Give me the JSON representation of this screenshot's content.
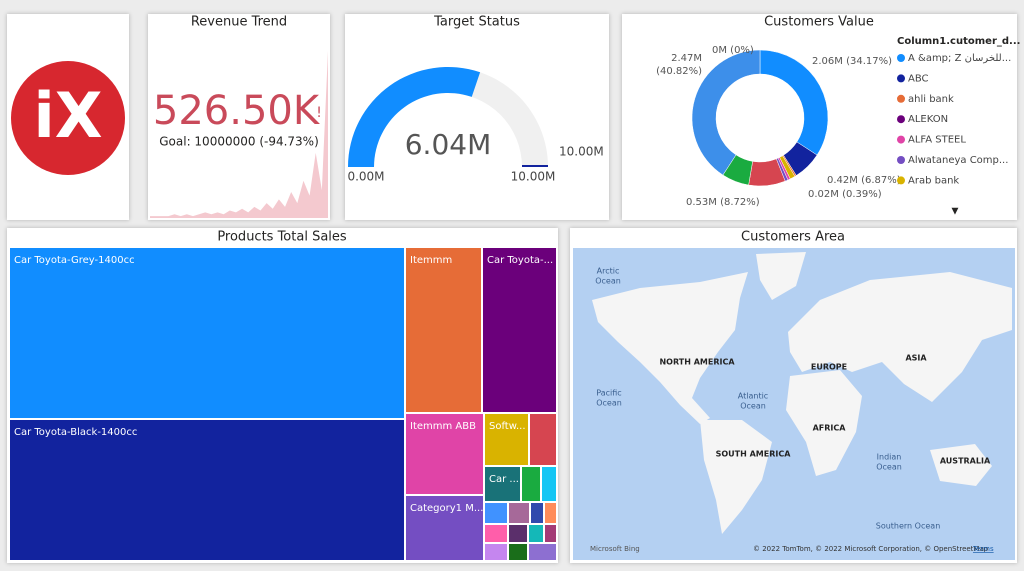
{
  "logo": {
    "text": "iX"
  },
  "revenue_trend": {
    "title": "Revenue Trend",
    "value": "526.50K",
    "alert": "!",
    "goal": "Goal: 10000000 (-94.73%)",
    "trend": [
      1,
      1,
      1,
      1,
      2,
      1,
      2,
      1,
      2,
      3,
      2,
      3,
      2,
      4,
      3,
      5,
      3,
      6,
      4,
      8,
      5,
      10,
      6,
      14,
      8,
      20,
      12,
      35,
      15,
      90
    ],
    "trend_ylim": [
      0,
      100
    ],
    "trend_color": "#f4c9cf",
    "value_color": "#c94a5a"
  },
  "target_status": {
    "title": "Target Status",
    "min": {
      "value": 0,
      "label": "0.00M"
    },
    "max": {
      "value": 10,
      "label": "10.00M"
    },
    "value": {
      "value": 6.04,
      "label": "6.04M"
    },
    "target": {
      "value": 10,
      "label": "10.00M"
    },
    "color": "#118dff",
    "track_color": "#f0f0f0",
    "target_color": "#12239e"
  },
  "customers_value": {
    "title": "Customers Value",
    "legend_title": "Column1.cutomer_d...",
    "legend": [
      {
        "name": "A &amp; Z للخرسان...",
        "color": "#118dff"
      },
      {
        "name": "ABC",
        "color": "#12239e"
      },
      {
        "name": "ahli bank",
        "color": "#e66c37"
      },
      {
        "name": "ALEKON",
        "color": "#6b007b"
      },
      {
        "name": "ALFA STEEL",
        "color": "#e044a7"
      },
      {
        "name": "Alwataneya Comp...",
        "color": "#744ec2"
      },
      {
        "name": "Arab bank",
        "color": "#d9b300"
      }
    ],
    "slices": [
      {
        "value": 34.17,
        "label": [
          "2.06M (34.17%)"
        ],
        "color": "#118dff"
      },
      {
        "value": 6.87,
        "label": [
          "0.42M (6.87%)"
        ],
        "color": "#12239e"
      },
      {
        "value": 0.39,
        "label": [
          "0.02M (0.39%)"
        ],
        "color": "#e66c37"
      },
      {
        "value": 1.23,
        "label": null,
        "color": "#d9b300"
      },
      {
        "value": 0.6,
        "label": null,
        "color": "#e044a7"
      },
      {
        "value": 0.7,
        "label": null,
        "color": "#744ec2"
      },
      {
        "value": 8.72,
        "label": [
          "0.53M (8.72%)"
        ],
        "color": "#d64550"
      },
      {
        "value": 6.5,
        "label": null,
        "color": "#1aab40"
      },
      {
        "value": 40.82,
        "label": [
          "2.47M",
          "(40.82%)"
        ],
        "color": "#3d8fea"
      },
      {
        "value": 0,
        "label": [
          "0M (0%)"
        ],
        "color": "#cccccc"
      }
    ]
  },
  "products_total_sales": {
    "title": "Products Total Sales",
    "tiles": [
      {
        "label": "Car Toyota-Grey-1400cc",
        "color": "#118dff"
      },
      {
        "label": "Car Toyota-Black-1400cc",
        "color": "#12239e"
      },
      {
        "label": "Itemmm",
        "color": "#e66c37"
      },
      {
        "label": "Car Toyota-...",
        "color": "#6b007b"
      },
      {
        "label": "Itemmm ABB",
        "color": "#e044a7"
      },
      {
        "label": "Category1 M...",
        "color": "#744ec2"
      },
      {
        "label": "Softw...",
        "color": "#d9b300"
      },
      {
        "label": null,
        "color": "#d64550"
      },
      {
        "label": "Car ...",
        "color": "#197278"
      },
      {
        "label": null,
        "color": "#1aab40"
      },
      {
        "label": null,
        "color": "#15c6f4"
      },
      {
        "label": null,
        "color": "#4092ff"
      },
      {
        "label": null,
        "color": "#a66999"
      },
      {
        "label": null,
        "color": "#3049ad"
      },
      {
        "label": null,
        "color": "#ff8c5a"
      },
      {
        "label": null,
        "color": "#ff5eaa"
      },
      {
        "label": null,
        "color": "#5b2f6b"
      },
      {
        "label": null,
        "color": "#14b8b8"
      },
      {
        "label": null,
        "color": "#a43b76"
      },
      {
        "label": null,
        "color": "#c586ef"
      },
      {
        "label": null,
        "color": "#1a6e1a"
      },
      {
        "label": null,
        "color": "#8d6fd1"
      }
    ]
  },
  "customers_area": {
    "title": "Customers Area",
    "labels": [
      {
        "lines": [
          "Arctic",
          "Ocean"
        ],
        "kind": "ocean"
      },
      {
        "lines": [
          "NORTH AMERICA"
        ],
        "kind": "land"
      },
      {
        "lines": [
          "Pacific",
          "Ocean"
        ],
        "kind": "ocean"
      },
      {
        "lines": [
          "Atlantic",
          "Ocean"
        ],
        "kind": "ocean"
      },
      {
        "lines": [
          "EUROPE"
        ],
        "kind": "land"
      },
      {
        "lines": [
          "ASIA"
        ],
        "kind": "land"
      },
      {
        "lines": [
          "AFRICA"
        ],
        "kind": "land"
      },
      {
        "lines": [
          "SOUTH AMERICA"
        ],
        "kind": "land"
      },
      {
        "lines": [
          "Indian",
          "Ocean"
        ],
        "kind": "ocean"
      },
      {
        "lines": [
          "AUSTRALIA"
        ],
        "kind": "land"
      },
      {
        "lines": [
          "Southern Ocean"
        ],
        "kind": "ocean"
      }
    ],
    "provider": "Microsoft Bing",
    "attribution": "© 2022 TomTom, © 2022 Microsoft Corporation, © OpenStreetMap",
    "terms": "Terms"
  }
}
